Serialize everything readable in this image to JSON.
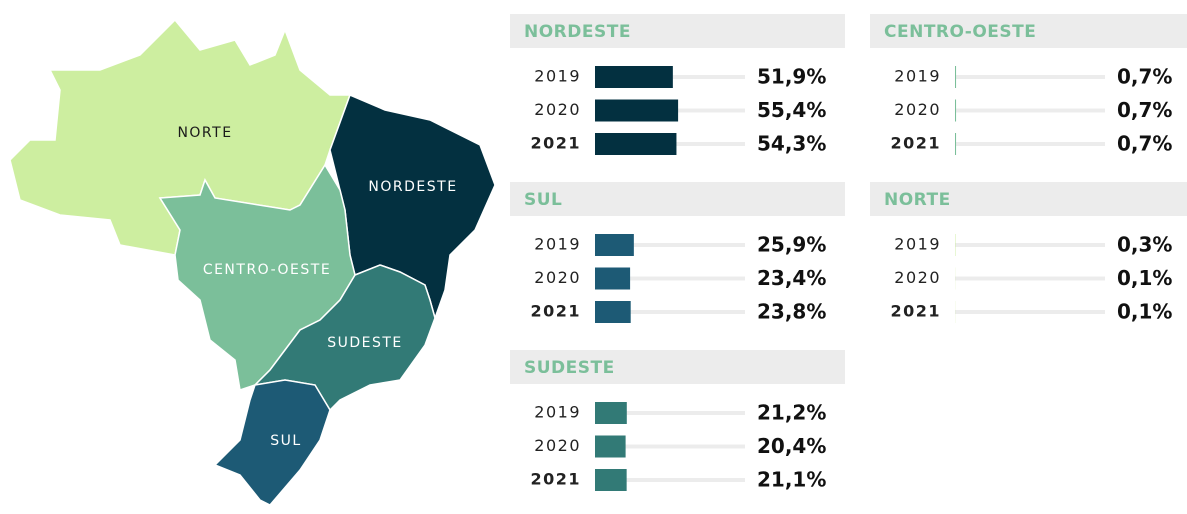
{
  "map": {
    "regions": [
      {
        "label": "NORTE",
        "color": "#cdeea0"
      },
      {
        "label": "NORDESTE",
        "color": "#033040"
      },
      {
        "label": "CENTRO-OESTE",
        "color": "#7bbf9a"
      },
      {
        "label": "SUDESTE",
        "color": "#327a76"
      },
      {
        "label": "SUL",
        "color": "#1d5a75"
      }
    ]
  },
  "chart_data": [
    {
      "type": "bar",
      "title": "NORDESTE",
      "categories": [
        "2019",
        "2020",
        "2021"
      ],
      "values": [
        51.9,
        55.4,
        54.3
      ],
      "value_labels": [
        "51,9%",
        "55,4%",
        "54,3%"
      ],
      "color": "#033040",
      "xlim": [
        0,
        100
      ]
    },
    {
      "type": "bar",
      "title": "SUL",
      "categories": [
        "2019",
        "2020",
        "2021"
      ],
      "values": [
        25.9,
        23.4,
        23.8
      ],
      "value_labels": [
        "25,9%",
        "23,4%",
        "23,8%"
      ],
      "color": "#1d5a75",
      "xlim": [
        0,
        100
      ]
    },
    {
      "type": "bar",
      "title": "SUDESTE",
      "categories": [
        "2019",
        "2020",
        "2021"
      ],
      "values": [
        21.2,
        20.4,
        21.1
      ],
      "value_labels": [
        "21,2%",
        "20,4%",
        "21,1%"
      ],
      "color": "#327a76",
      "xlim": [
        0,
        100
      ]
    },
    {
      "type": "bar",
      "title": "CENTRO-OESTE",
      "categories": [
        "2019",
        "2020",
        "2021"
      ],
      "values": [
        0.7,
        0.7,
        0.7
      ],
      "value_labels": [
        "0,7%",
        "0,7%",
        "0,7%"
      ],
      "color": "#7bbf9a",
      "xlim": [
        0,
        100
      ]
    },
    {
      "type": "bar",
      "title": "NORTE",
      "categories": [
        "2019",
        "2020",
        "2021"
      ],
      "values": [
        0.3,
        0.1,
        0.1
      ],
      "value_labels": [
        "0,3%",
        "0,1%",
        "0,1%"
      ],
      "color": "#cdeea0",
      "xlim": [
        0,
        100
      ]
    }
  ]
}
